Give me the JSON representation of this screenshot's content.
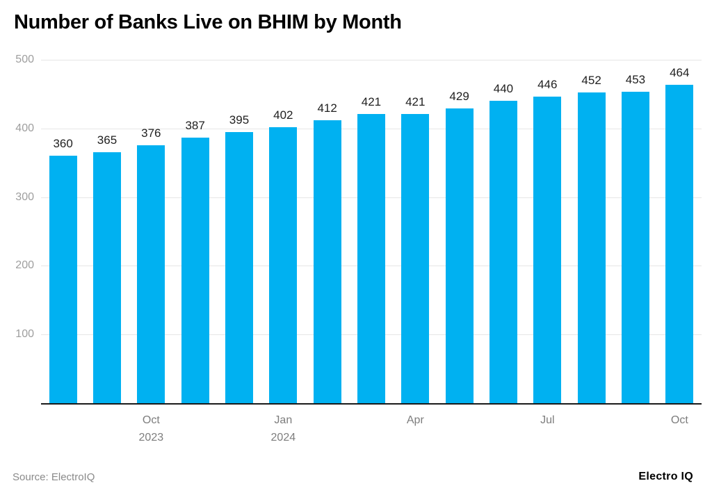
{
  "title": "Number of Banks Live on BHIM by Month",
  "source": "Source: ElectroIQ",
  "brand": "Electro IQ",
  "colors": {
    "bar": "#00b1f1",
    "grid": "#e6e6e6",
    "axis": "#1a1a1a",
    "y_tick_text": "#9e9e9e",
    "x_tick_text": "#7d7d7d",
    "value_label": "#212121",
    "background": "#ffffff"
  },
  "chart_data": {
    "type": "bar",
    "title": "Number of Banks Live on BHIM by Month",
    "values": [
      360,
      365,
      376,
      387,
      395,
      402,
      412,
      421,
      421,
      429,
      440,
      446,
      452,
      453,
      464
    ],
    "value_labels": [
      "360",
      "365",
      "376",
      "387",
      "395",
      "402",
      "412",
      "421",
      "421",
      "429",
      "440",
      "446",
      "452",
      "453",
      "464"
    ],
    "bar_count": 15,
    "y_ticks": [
      100,
      200,
      300,
      400,
      500
    ],
    "ylim": [
      0,
      500
    ],
    "grid": true,
    "xlabel": "",
    "ylabel": "",
    "x_tick_labels": [
      {
        "index": 2,
        "lines": [
          "Oct",
          "2023"
        ]
      },
      {
        "index": 5,
        "lines": [
          "Jan",
          "2024"
        ]
      },
      {
        "index": 8,
        "lines": [
          "Apr"
        ]
      },
      {
        "index": 11,
        "lines": [
          "Jul"
        ]
      },
      {
        "index": 14,
        "lines": [
          "Oct"
        ]
      }
    ]
  }
}
